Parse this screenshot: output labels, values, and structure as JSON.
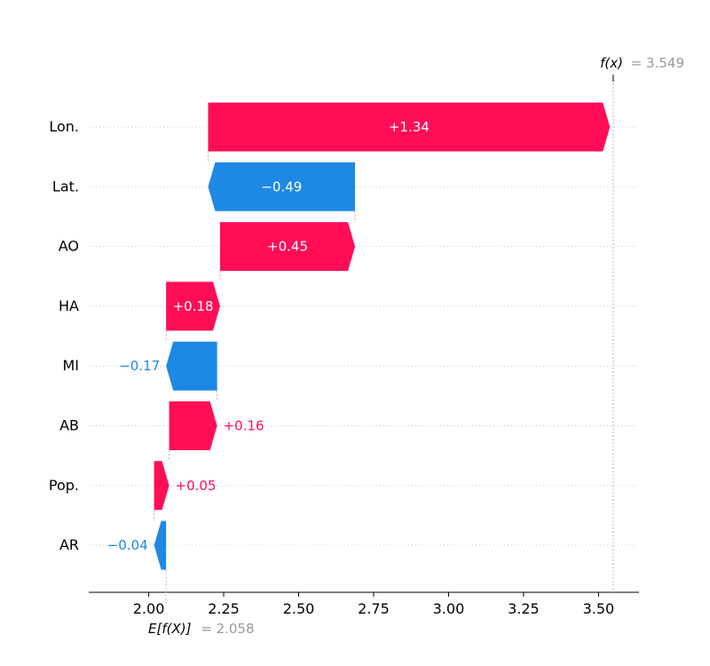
{
  "chart_data": {
    "type": "waterfall",
    "base_value": 2.058,
    "output_value": 3.549,
    "base_label": "E[f(X)]",
    "base_value_text": "= 2.058",
    "output_label": "f(x)",
    "output_value_text": "= 3.549",
    "x_ticks": [
      2.0,
      2.25,
      2.5,
      2.75,
      3.0,
      3.25,
      3.5
    ],
    "x_tick_labels": [
      "2.00",
      "2.25",
      "2.50",
      "2.75",
      "3.00",
      "3.25",
      "3.50"
    ],
    "xlim": [
      1.8,
      3.635
    ],
    "features": [
      {
        "name": "Lon.",
        "value": 1.34,
        "label": "+1.34"
      },
      {
        "name": "Lat.",
        "value": -0.49,
        "label": "−0.49"
      },
      {
        "name": "AO",
        "value": 0.45,
        "label": "+0.45"
      },
      {
        "name": "HA",
        "value": 0.18,
        "label": "+0.18"
      },
      {
        "name": "MI",
        "value": -0.17,
        "label": "−0.17"
      },
      {
        "name": "AB",
        "value": 0.16,
        "label": "+0.16"
      },
      {
        "name": "Pop.",
        "value": 0.05,
        "label": "+0.05"
      },
      {
        "name": "AR",
        "value": -0.04,
        "label": "−0.04"
      }
    ],
    "colors": {
      "positive": "#ff0d57",
      "negative": "#1e88e5",
      "axis": "#000000",
      "annotation": "#999999",
      "grid": "#cccccc"
    },
    "grid": true
  }
}
